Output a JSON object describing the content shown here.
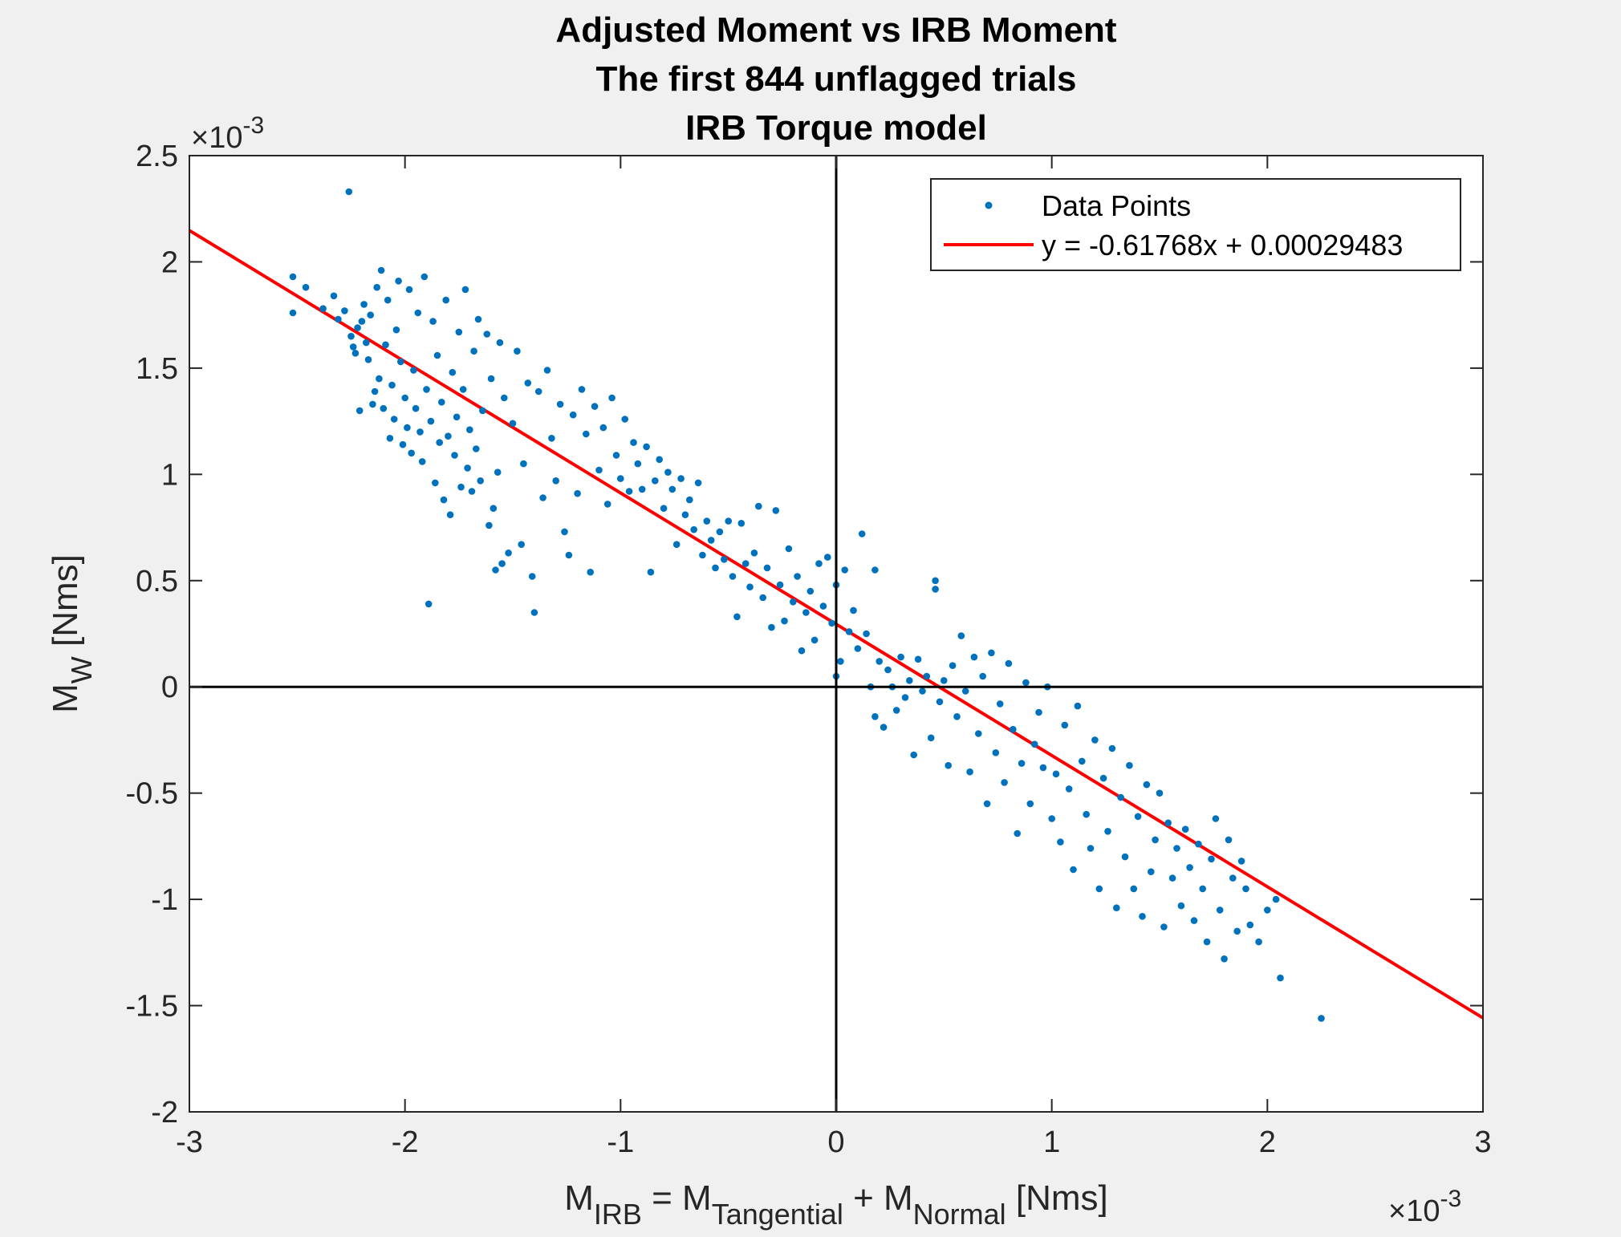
{
  "chart_data": {
    "type": "scatter",
    "title": [
      "Adjusted Moment vs IRB Moment",
      "The first 844 unflagged trials",
      "IRB Torque model"
    ],
    "xlabel": {
      "main": "M",
      "sub1": "IRB",
      "eq": " = M",
      "sub2": "Tangential",
      "plus": " + M",
      "sub3": "Normal",
      "unit": " [Nms]"
    },
    "ylabel": {
      "main": "M",
      "sub": "W",
      "unit": " [Nms]"
    },
    "x_multiplier": {
      "prefix": "×10",
      "exp": "-3"
    },
    "y_multiplier": {
      "prefix": "×10",
      "exp": "-3"
    },
    "xlim": [
      -0.003,
      0.003
    ],
    "ylim": [
      -0.002,
      0.0025
    ],
    "x_ticks": [
      -3,
      -2,
      -1,
      0,
      1,
      2,
      3
    ],
    "x_tick_labels": [
      "-3",
      "-2",
      "-1",
      "0",
      "1",
      "2",
      "3"
    ],
    "y_ticks": [
      -2,
      -1.5,
      -1,
      -0.5,
      0,
      0.5,
      1,
      1.5,
      2,
      2.5
    ],
    "y_tick_labels": [
      "-2",
      "-1.5",
      "-1",
      "-0.5",
      "0",
      "0.5",
      "1",
      "1.5",
      "2",
      "2.5"
    ],
    "grid": false,
    "legend": {
      "position": "top-right",
      "entries": [
        "Data Points",
        "y = -0.61768x + 0.00029483"
      ]
    },
    "fit": {
      "slope": -0.61768,
      "intercept": 0.00029483,
      "color": "#ff0000"
    },
    "colors": {
      "points": "#0072bd",
      "fit": "#ff0000",
      "axes": "#000000"
    },
    "series": [
      {
        "name": "Data Points",
        "style": "scatter",
        "x_scale": "×10^-3",
        "y_scale": "×10^-3",
        "points": [
          [
            -2.52,
            1.93
          ],
          [
            -2.52,
            1.76
          ],
          [
            -2.46,
            1.88
          ],
          [
            -2.38,
            1.78
          ],
          [
            -2.33,
            1.84
          ],
          [
            -2.31,
            1.73
          ],
          [
            -2.28,
            1.77
          ],
          [
            -2.26,
            2.33
          ],
          [
            -2.25,
            1.65
          ],
          [
            -2.24,
            1.6
          ],
          [
            -2.23,
            1.57
          ],
          [
            -2.22,
            1.69
          ],
          [
            -2.21,
            1.3
          ],
          [
            -2.2,
            1.72
          ],
          [
            -2.19,
            1.8
          ],
          [
            -2.18,
            1.62
          ],
          [
            -2.17,
            1.54
          ],
          [
            -2.16,
            1.75
          ],
          [
            -2.15,
            1.33
          ],
          [
            -2.14,
            1.39
          ],
          [
            -2.13,
            1.88
          ],
          [
            -2.12,
            1.45
          ],
          [
            -2.11,
            1.96
          ],
          [
            -2.1,
            1.31
          ],
          [
            -2.09,
            1.61
          ],
          [
            -2.08,
            1.82
          ],
          [
            -2.07,
            1.17
          ],
          [
            -2.06,
            1.42
          ],
          [
            -2.05,
            1.26
          ],
          [
            -2.04,
            1.68
          ],
          [
            -2.03,
            1.91
          ],
          [
            -2.02,
            1.53
          ],
          [
            -2.01,
            1.14
          ],
          [
            -2.0,
            1.36
          ],
          [
            -1.99,
            1.22
          ],
          [
            -1.98,
            1.87
          ],
          [
            -1.97,
            1.1
          ],
          [
            -1.96,
            1.49
          ],
          [
            -1.95,
            1.31
          ],
          [
            -1.94,
            1.76
          ],
          [
            -1.93,
            1.2
          ],
          [
            -1.92,
            1.06
          ],
          [
            -1.91,
            1.93
          ],
          [
            -1.9,
            1.4
          ],
          [
            -1.89,
            0.39
          ],
          [
            -1.88,
            1.25
          ],
          [
            -1.87,
            1.72
          ],
          [
            -1.86,
            0.96
          ],
          [
            -1.85,
            1.56
          ],
          [
            -1.84,
            1.15
          ],
          [
            -1.83,
            1.34
          ],
          [
            -1.82,
            0.88
          ],
          [
            -1.81,
            1.82
          ],
          [
            -1.8,
            1.18
          ],
          [
            -1.79,
            0.81
          ],
          [
            -1.78,
            1.48
          ],
          [
            -1.77,
            1.09
          ],
          [
            -1.76,
            1.27
          ],
          [
            -1.75,
            1.67
          ],
          [
            -1.74,
            0.94
          ],
          [
            -1.73,
            1.4
          ],
          [
            -1.72,
            1.87
          ],
          [
            -1.71,
            1.03
          ],
          [
            -1.7,
            1.21
          ],
          [
            -1.69,
            0.92
          ],
          [
            -1.68,
            1.58
          ],
          [
            -1.67,
            1.12
          ],
          [
            -1.66,
            1.73
          ],
          [
            -1.65,
            0.97
          ],
          [
            -1.64,
            1.3
          ],
          [
            -1.62,
            1.66
          ],
          [
            -1.61,
            0.76
          ],
          [
            -1.6,
            1.45
          ],
          [
            -1.59,
            0.84
          ],
          [
            -1.58,
            0.55
          ],
          [
            -1.57,
            1.01
          ],
          [
            -1.56,
            1.62
          ],
          [
            -1.55,
            0.58
          ],
          [
            -1.54,
            1.36
          ],
          [
            -1.52,
            0.63
          ],
          [
            -1.5,
            1.24
          ],
          [
            -1.48,
            1.58
          ],
          [
            -1.46,
            0.67
          ],
          [
            -1.45,
            1.05
          ],
          [
            -1.43,
            1.43
          ],
          [
            -1.41,
            0.52
          ],
          [
            -1.4,
            0.35
          ],
          [
            -1.38,
            1.39
          ],
          [
            -1.36,
            0.89
          ],
          [
            -1.34,
            1.49
          ],
          [
            -1.32,
            1.17
          ],
          [
            -1.3,
            0.97
          ],
          [
            -1.28,
            1.33
          ],
          [
            -1.26,
            0.73
          ],
          [
            -1.24,
            0.62
          ],
          [
            -1.22,
            1.28
          ],
          [
            -1.2,
            0.91
          ],
          [
            -1.18,
            1.4
          ],
          [
            -1.16,
            1.19
          ],
          [
            -1.14,
            0.54
          ],
          [
            -1.12,
            1.32
          ],
          [
            -1.1,
            1.02
          ],
          [
            -1.08,
            1.22
          ],
          [
            -1.06,
            0.86
          ],
          [
            -1.04,
            1.36
          ],
          [
            -1.02,
            1.09
          ],
          [
            -1.0,
            0.98
          ],
          [
            -0.98,
            1.26
          ],
          [
            -0.96,
            0.92
          ],
          [
            -0.94,
            1.15
          ],
          [
            -0.92,
            1.05
          ],
          [
            -0.9,
            0.93
          ],
          [
            -0.88,
            1.13
          ],
          [
            -0.86,
            0.54
          ],
          [
            -0.84,
            0.97
          ],
          [
            -0.82,
            1.07
          ],
          [
            -0.8,
            0.84
          ],
          [
            -0.78,
            1.01
          ],
          [
            -0.76,
            0.93
          ],
          [
            -0.74,
            0.67
          ],
          [
            -0.72,
            0.98
          ],
          [
            -0.7,
            0.81
          ],
          [
            -0.68,
            0.88
          ],
          [
            -0.66,
            0.74
          ],
          [
            -0.64,
            0.96
          ],
          [
            -0.62,
            0.62
          ],
          [
            -0.6,
            0.78
          ],
          [
            -0.58,
            0.69
          ],
          [
            -0.56,
            0.56
          ],
          [
            -0.54,
            0.73
          ],
          [
            -0.52,
            0.6
          ],
          [
            -0.5,
            0.78
          ],
          [
            -0.48,
            0.52
          ],
          [
            -0.46,
            0.33
          ],
          [
            -0.44,
            0.77
          ],
          [
            -0.42,
            0.58
          ],
          [
            -0.4,
            0.47
          ],
          [
            -0.38,
            0.63
          ],
          [
            -0.36,
            0.85
          ],
          [
            -0.34,
            0.42
          ],
          [
            -0.32,
            0.56
          ],
          [
            -0.3,
            0.28
          ],
          [
            -0.28,
            0.83
          ],
          [
            -0.26,
            0.48
          ],
          [
            -0.24,
            0.31
          ],
          [
            -0.22,
            0.65
          ],
          [
            -0.2,
            0.4
          ],
          [
            -0.18,
            0.52
          ],
          [
            -0.16,
            0.17
          ],
          [
            -0.14,
            0.35
          ],
          [
            -0.12,
            0.45
          ],
          [
            -0.1,
            0.22
          ],
          [
            -0.08,
            0.58
          ],
          [
            -0.06,
            0.38
          ],
          [
            -0.04,
            0.61
          ],
          [
            -0.02,
            0.3
          ],
          [
            0.0,
            0.05
          ],
          [
            0.0,
            0.48
          ],
          [
            0.02,
            0.12
          ],
          [
            0.04,
            0.55
          ],
          [
            0.06,
            0.26
          ],
          [
            0.08,
            0.36
          ],
          [
            0.1,
            0.18
          ],
          [
            0.12,
            0.72
          ],
          [
            0.14,
            0.25
          ],
          [
            0.16,
            0.0
          ],
          [
            0.18,
            -0.14
          ],
          [
            0.18,
            0.55
          ],
          [
            0.2,
            0.12
          ],
          [
            0.22,
            -0.19
          ],
          [
            0.24,
            0.08
          ],
          [
            0.26,
            0.0
          ],
          [
            0.28,
            -0.11
          ],
          [
            0.3,
            0.14
          ],
          [
            0.32,
            -0.05
          ],
          [
            0.34,
            0.03
          ],
          [
            0.36,
            -0.32
          ],
          [
            0.38,
            0.13
          ],
          [
            0.4,
            -0.02
          ],
          [
            0.42,
            0.05
          ],
          [
            0.44,
            -0.24
          ],
          [
            0.46,
            0.5
          ],
          [
            0.46,
            0.46
          ],
          [
            0.48,
            -0.07
          ],
          [
            0.5,
            0.03
          ],
          [
            0.52,
            -0.37
          ],
          [
            0.54,
            0.1
          ],
          [
            0.56,
            -0.14
          ],
          [
            0.58,
            0.24
          ],
          [
            0.6,
            -0.02
          ],
          [
            0.62,
            -0.4
          ],
          [
            0.64,
            0.14
          ],
          [
            0.66,
            -0.22
          ],
          [
            0.68,
            0.05
          ],
          [
            0.7,
            -0.55
          ],
          [
            0.72,
            0.16
          ],
          [
            0.74,
            -0.31
          ],
          [
            0.76,
            -0.08
          ],
          [
            0.78,
            -0.45
          ],
          [
            0.8,
            0.11
          ],
          [
            0.82,
            -0.2
          ],
          [
            0.84,
            -0.69
          ],
          [
            0.86,
            -0.36
          ],
          [
            0.88,
            0.02
          ],
          [
            0.9,
            -0.55
          ],
          [
            0.92,
            -0.27
          ],
          [
            0.94,
            -0.12
          ],
          [
            0.96,
            -0.38
          ],
          [
            0.98,
            0.0
          ],
          [
            1.0,
            -0.62
          ],
          [
            1.02,
            -0.41
          ],
          [
            1.04,
            -0.73
          ],
          [
            1.06,
            -0.18
          ],
          [
            1.08,
            -0.48
          ],
          [
            1.1,
            -0.86
          ],
          [
            1.12,
            -0.09
          ],
          [
            1.14,
            -0.35
          ],
          [
            1.16,
            -0.6
          ],
          [
            1.18,
            -0.76
          ],
          [
            1.2,
            -0.25
          ],
          [
            1.22,
            -0.95
          ],
          [
            1.24,
            -0.43
          ],
          [
            1.26,
            -0.68
          ],
          [
            1.28,
            -0.29
          ],
          [
            1.3,
            -1.04
          ],
          [
            1.32,
            -0.52
          ],
          [
            1.34,
            -0.8
          ],
          [
            1.36,
            -0.37
          ],
          [
            1.38,
            -0.95
          ],
          [
            1.4,
            -0.61
          ],
          [
            1.42,
            -1.08
          ],
          [
            1.44,
            -0.46
          ],
          [
            1.46,
            -0.87
          ],
          [
            1.48,
            -0.72
          ],
          [
            1.5,
            -0.5
          ],
          [
            1.52,
            -1.13
          ],
          [
            1.54,
            -0.64
          ],
          [
            1.56,
            -0.9
          ],
          [
            1.58,
            -0.76
          ],
          [
            1.6,
            -1.03
          ],
          [
            1.62,
            -0.67
          ],
          [
            1.64,
            -0.85
          ],
          [
            1.66,
            -1.1
          ],
          [
            1.68,
            -0.74
          ],
          [
            1.7,
            -0.95
          ],
          [
            1.72,
            -1.2
          ],
          [
            1.74,
            -0.81
          ],
          [
            1.76,
            -0.62
          ],
          [
            1.78,
            -1.05
          ],
          [
            1.8,
            -1.28
          ],
          [
            1.82,
            -0.72
          ],
          [
            1.84,
            -0.9
          ],
          [
            1.86,
            -1.15
          ],
          [
            1.88,
            -0.82
          ],
          [
            1.9,
            -0.95
          ],
          [
            1.92,
            -1.12
          ],
          [
            1.96,
            -1.2
          ],
          [
            2.0,
            -1.05
          ],
          [
            2.04,
            -1.0
          ],
          [
            2.06,
            -1.37
          ],
          [
            2.25,
            -1.56
          ]
        ]
      }
    ]
  }
}
